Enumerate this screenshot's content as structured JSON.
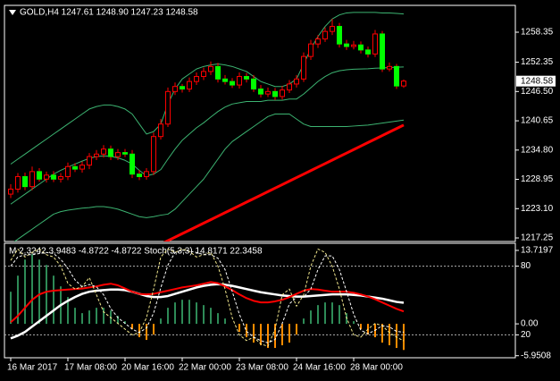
{
  "chart_data": [
    {
      "type": "candlestick",
      "title": "GOLD,H4  1247.61 1248.90 1247.23 1248.58",
      "categories": [
        "16 Mar 2017",
        null,
        null,
        null,
        null,
        null,
        null,
        null,
        "17 Mar 08:00",
        null,
        null,
        null,
        null,
        null,
        null,
        null,
        "20 Mar 16:00",
        null,
        null,
        null,
        null,
        null,
        null,
        null,
        "22 Mar 00:00",
        null,
        null,
        null,
        null,
        null,
        null,
        null,
        "23 Mar 08:00",
        null,
        null,
        null,
        null,
        null,
        null,
        null,
        "24 Mar 16:00",
        null,
        null,
        null,
        null,
        null,
        null,
        null,
        "28 Mar 00:00",
        null,
        null,
        null,
        null,
        null,
        null,
        null
      ],
      "open": [
        1226.0,
        1227.0,
        1229.5,
        1227.5,
        1230.5,
        1229.0,
        1229.8,
        1229.0,
        1229.5,
        1231.5,
        1231.0,
        1231.8,
        1233.5,
        1234.0,
        1235.0,
        1233.5,
        1234.3,
        1234.0,
        1230.0,
        1229.5,
        1230.5,
        1237.5,
        1240.0,
        1246.5,
        1247.5,
        1247.0,
        1248.5,
        1249.5,
        1250.5,
        1251.5,
        1249.0,
        1248.5,
        1247.8,
        1249.5,
        1249.0,
        1247.0,
        1246.0,
        1246.5,
        1245.5,
        1246.8,
        1248.0,
        1249.0,
        1253.5,
        1256.0,
        1257.0,
        1258.5,
        1259.5,
        1256.0,
        1255.5,
        1255.8,
        1254.8,
        1254.0,
        1258.0,
        1251.0,
        1251.5,
        1247.61
      ],
      "high": [
        1228.0,
        1230.2,
        1230.3,
        1231.5,
        1231.2,
        1230.5,
        1230.6,
        1230.2,
        1232.3,
        1232.2,
        1232.5,
        1234.2,
        1234.8,
        1235.8,
        1235.7,
        1235.0,
        1235.0,
        1234.8,
        1230.8,
        1231.2,
        1238.3,
        1241.0,
        1247.3,
        1248.3,
        1248.0,
        1249.3,
        1250.3,
        1251.3,
        1252.5,
        1252.2,
        1249.8,
        1249.2,
        1250.3,
        1250.2,
        1249.8,
        1247.8,
        1247.3,
        1247.2,
        1247.6,
        1248.8,
        1249.8,
        1254.3,
        1256.8,
        1257.8,
        1259.3,
        1261.0,
        1260.2,
        1256.8,
        1256.6,
        1256.5,
        1255.5,
        1258.8,
        1258.6,
        1252.3,
        1252.0,
        1248.9
      ],
      "low": [
        1225.2,
        1226.3,
        1226.8,
        1226.8,
        1228.5,
        1228.3,
        1228.4,
        1228.3,
        1228.8,
        1230.4,
        1230.3,
        1231.0,
        1232.8,
        1233.3,
        1232.8,
        1232.8,
        1233.4,
        1229.2,
        1228.8,
        1228.9,
        1229.8,
        1236.9,
        1239.4,
        1245.8,
        1246.3,
        1246.4,
        1247.8,
        1248.8,
        1249.8,
        1248.3,
        1247.9,
        1247.2,
        1247.1,
        1248.3,
        1246.4,
        1245.3,
        1245.4,
        1244.8,
        1244.9,
        1246.2,
        1247.3,
        1248.4,
        1252.8,
        1255.2,
        1256.4,
        1257.8,
        1255.3,
        1254.8,
        1254.9,
        1254.1,
        1253.3,
        1253.4,
        1250.4,
        1250.5,
        1247.0,
        1247.23
      ],
      "close": [
        1227.0,
        1229.5,
        1227.5,
        1230.5,
        1229.0,
        1229.8,
        1229.0,
        1229.5,
        1231.5,
        1231.0,
        1231.8,
        1233.5,
        1234.0,
        1235.0,
        1233.5,
        1234.3,
        1234.0,
        1230.0,
        1229.5,
        1230.5,
        1237.5,
        1240.0,
        1246.5,
        1247.5,
        1247.0,
        1248.5,
        1249.5,
        1250.5,
        1251.5,
        1249.0,
        1248.5,
        1247.8,
        1249.5,
        1249.0,
        1247.0,
        1246.0,
        1246.5,
        1245.5,
        1246.8,
        1248.0,
        1249.0,
        1253.5,
        1256.0,
        1257.0,
        1258.5,
        1259.5,
        1256.0,
        1255.5,
        1255.8,
        1254.8,
        1254.0,
        1258.0,
        1251.0,
        1251.5,
        1247.61,
        1248.58
      ],
      "up_color": "#000000",
      "down_color": "#00ff00",
      "wick_color": "#ff0000",
      "series": [
        {
          "color": "#3cb371",
          "width": 1,
          "values": [
            1232,
            1233,
            1234,
            1235,
            1236,
            1237,
            1238,
            1239,
            1240,
            1241,
            1242,
            1243,
            1243.5,
            1243.8,
            1243.8,
            1243.5,
            1243,
            1242,
            1240,
            1238,
            1238.5,
            1240,
            1244,
            1247,
            1249,
            1250,
            1251,
            1251.5,
            1251.8,
            1252,
            1251.8,
            1251.5,
            1251,
            1250.5,
            1249.5,
            1248.5,
            1248,
            1247.5,
            1247.5,
            1248,
            1249,
            1252,
            1255,
            1257.5,
            1259.5,
            1261,
            1261.8,
            1262.2,
            1262.3,
            1262.3,
            1262.3,
            1262.3,
            1262.2,
            1262.2,
            1262.1,
            1262.0
          ]
        },
        {
          "color": "#3cb371",
          "width": 1,
          "values": [
            1224,
            1225,
            1226,
            1227,
            1228,
            1229,
            1230,
            1230.75,
            1231.4,
            1232,
            1232.6,
            1233.15,
            1233.5,
            1233.65,
            1233.55,
            1233.25,
            1232.75,
            1232,
            1230.75,
            1229.65,
            1230,
            1230.9,
            1233,
            1235,
            1236.75,
            1238,
            1239.25,
            1240.25,
            1241.4,
            1242.5,
            1243.4,
            1244,
            1244.25,
            1244.5,
            1244.5,
            1244.5,
            1244.75,
            1244.75,
            1244.75,
            1245,
            1245,
            1246,
            1247.25,
            1248.5,
            1249.5,
            1250.25,
            1250.65,
            1250.85,
            1250.95,
            1251,
            1251.05,
            1251.15,
            1251.2,
            1251.3,
            1251.35,
            1251.4
          ]
        },
        {
          "color": "#3cb371",
          "width": 1,
          "values": [
            1216,
            1217,
            1218,
            1219,
            1220,
            1221,
            1222,
            1222.5,
            1222.8,
            1223,
            1223.2,
            1223.3,
            1223.5,
            1223.5,
            1223.3,
            1223,
            1222.5,
            1222,
            1221.5,
            1221.3,
            1221.5,
            1221.8,
            1222,
            1223,
            1224.5,
            1226,
            1227.5,
            1229,
            1231,
            1233,
            1235,
            1236.5,
            1237.5,
            1238.5,
            1239.5,
            1240.5,
            1241.5,
            1242,
            1242,
            1242,
            1241,
            1240,
            1239.5,
            1239.5,
            1239.5,
            1239.5,
            1239.5,
            1239.5,
            1239.6,
            1239.7,
            1239.8,
            1240,
            1240.2,
            1240.4,
            1240.6,
            1240.8
          ]
        },
        {
          "color": "#ff0000",
          "width": 3,
          "values": [
            null,
            null,
            null,
            null,
            null,
            null,
            null,
            null,
            null,
            null,
            null,
            null,
            null,
            null,
            null,
            null,
            null,
            null,
            null,
            null,
            null,
            1216.0,
            1216.7,
            1217.4,
            1218.1,
            1218.8,
            1219.5,
            1220.2,
            1220.9,
            1221.6,
            1222.3,
            1223.0,
            1223.7,
            1224.4,
            1225.1,
            1225.8,
            1226.5,
            1227.2,
            1227.9,
            1228.6,
            1229.3,
            1230.0,
            1230.7,
            1231.4,
            1232.1,
            1232.8,
            1233.5,
            1234.2,
            1234.9,
            1235.6,
            1236.3,
            1237.0,
            1237.7,
            1238.4,
            1239.1,
            1239.8
          ]
        }
      ],
      "ylim": [
        1216.54,
        1263.71
      ],
      "yticks": [
        1258.35,
        1252.35,
        {
          "value": 1246.5,
          "label": "1246.50"
        },
        1240.65,
        {
          "value": 1234.8,
          "label": "1234.80"
        },
        1228.95,
        {
          "value": 1223.1,
          "label": "1223.10"
        },
        1217.25
      ]
    },
    {
      "type": "indicator",
      "title": "M 2.3242 3.9483 -4.8722 -4.8722  Stoch(5,3,3) 14.8171 22.3458",
      "histogram": {
        "color": "#2e8b57",
        "negative_color": "#ff8c00",
        "values": [
          6,
          9,
          12,
          13,
          12,
          11,
          9,
          7,
          5,
          3,
          2,
          2.5,
          3,
          3,
          2.5,
          1.5,
          0.5,
          -1,
          -2.5,
          -3,
          -2,
          1,
          3,
          4,
          4.5,
          4.5,
          4,
          3.5,
          3,
          2,
          1,
          0,
          -1.5,
          -2.5,
          -3.5,
          -4,
          -4.5,
          -4.5,
          -4,
          -3.5,
          -2,
          1,
          2.5,
          3.5,
          4,
          4,
          3.5,
          2,
          0.5,
          -1,
          -2,
          -2.5,
          -3.5,
          -4,
          -4.5,
          -4.8722
        ]
      },
      "series": [
        {
          "color": "#ffffff",
          "width": 2.5,
          "values": [
            -2.7,
            -2.2,
            -1.5,
            -0.5,
            0.5,
            1.5,
            2.5,
            3.5,
            4.3,
            5,
            5.6,
            6,
            6.2,
            6.3,
            6.4,
            6.4,
            6.3,
            6.0,
            5.6,
            5.2,
            5.0,
            5.0,
            5.2,
            5.6,
            6.0,
            6.4,
            6.8,
            7.1,
            7.3,
            7.4,
            7.3,
            7.1,
            6.8,
            6.5,
            6.2,
            5.9,
            5.7,
            5.5,
            5.3,
            5.2,
            5.1,
            5.1,
            5.2,
            5.3,
            5.4,
            5.5,
            5.5,
            5.5,
            5.4,
            5.3,
            5.1,
            4.9,
            4.7,
            4.4,
            4.1,
            3.9483
          ]
        },
        {
          "color": "#ff0000",
          "width": 2,
          "values": [
            0.3,
            1.5,
            3,
            4.5,
            5.5,
            6,
            6.2,
            6.3,
            6.4,
            6.5,
            6.6,
            6.8,
            7.0,
            7.3,
            7.5,
            7.2,
            6.6,
            6.0,
            5.6,
            5.5,
            5.6,
            5.9,
            6.2,
            6.5,
            6.8,
            7.0,
            7.2,
            7.5,
            7.8,
            7.6,
            7.0,
            6.3,
            5.5,
            4.8,
            4.3,
            4.0,
            4.0,
            4.2,
            4.5,
            5.0,
            5.6,
            6.2,
            6.5,
            6.4,
            6.2,
            6.0,
            6.0,
            6.0,
            5.8,
            5.5,
            5.1,
            4.6,
            4.0,
            3.4,
            2.8,
            2.3242
          ]
        },
        {
          "color": "#f0e68c",
          "width": 1,
          "dash": true,
          "axis": "y2",
          "values": [
            85,
            95,
            88,
            92,
            95,
            90,
            88,
            80,
            65,
            60,
            62,
            70,
            55,
            40,
            35,
            30,
            25,
            20,
            22,
            35,
            60,
            88,
            95,
            92,
            95,
            93,
            88,
            90,
            92,
            80,
            60,
            35,
            20,
            15,
            18,
            12,
            10,
            25,
            55,
            60,
            45,
            55,
            80,
            95,
            92,
            80,
            60,
            35,
            20,
            18,
            25,
            30,
            28,
            22,
            18,
            14.8171
          ]
        },
        {
          "color": "#ffffff",
          "width": 1,
          "dash": true,
          "axis": "y2",
          "values": [
            80,
            88,
            90,
            90,
            91,
            92,
            91,
            86,
            78,
            68,
            62,
            64,
            62,
            55,
            43,
            35,
            30,
            25,
            22,
            26,
            39,
            61,
            81,
            92,
            94,
            93,
            92,
            90,
            90,
            87,
            77,
            58,
            38,
            23,
            18,
            15,
            13,
            16,
            30,
            47,
            53,
            53,
            60,
            77,
            89,
            89,
            77,
            58,
            38,
            24,
            21,
            24,
            28,
            27,
            23,
            22.3458
          ]
        }
      ],
      "ylim": [
        -6.33,
        15.05
      ],
      "yticks": [
        13.7197,
        {
          "value": 0,
          "label": "0.00"
        },
        -5.9508
      ],
      "y2lim": [
        0,
        100
      ],
      "y2ticks": [
        80,
        20
      ],
      "grid": true
    }
  ]
}
